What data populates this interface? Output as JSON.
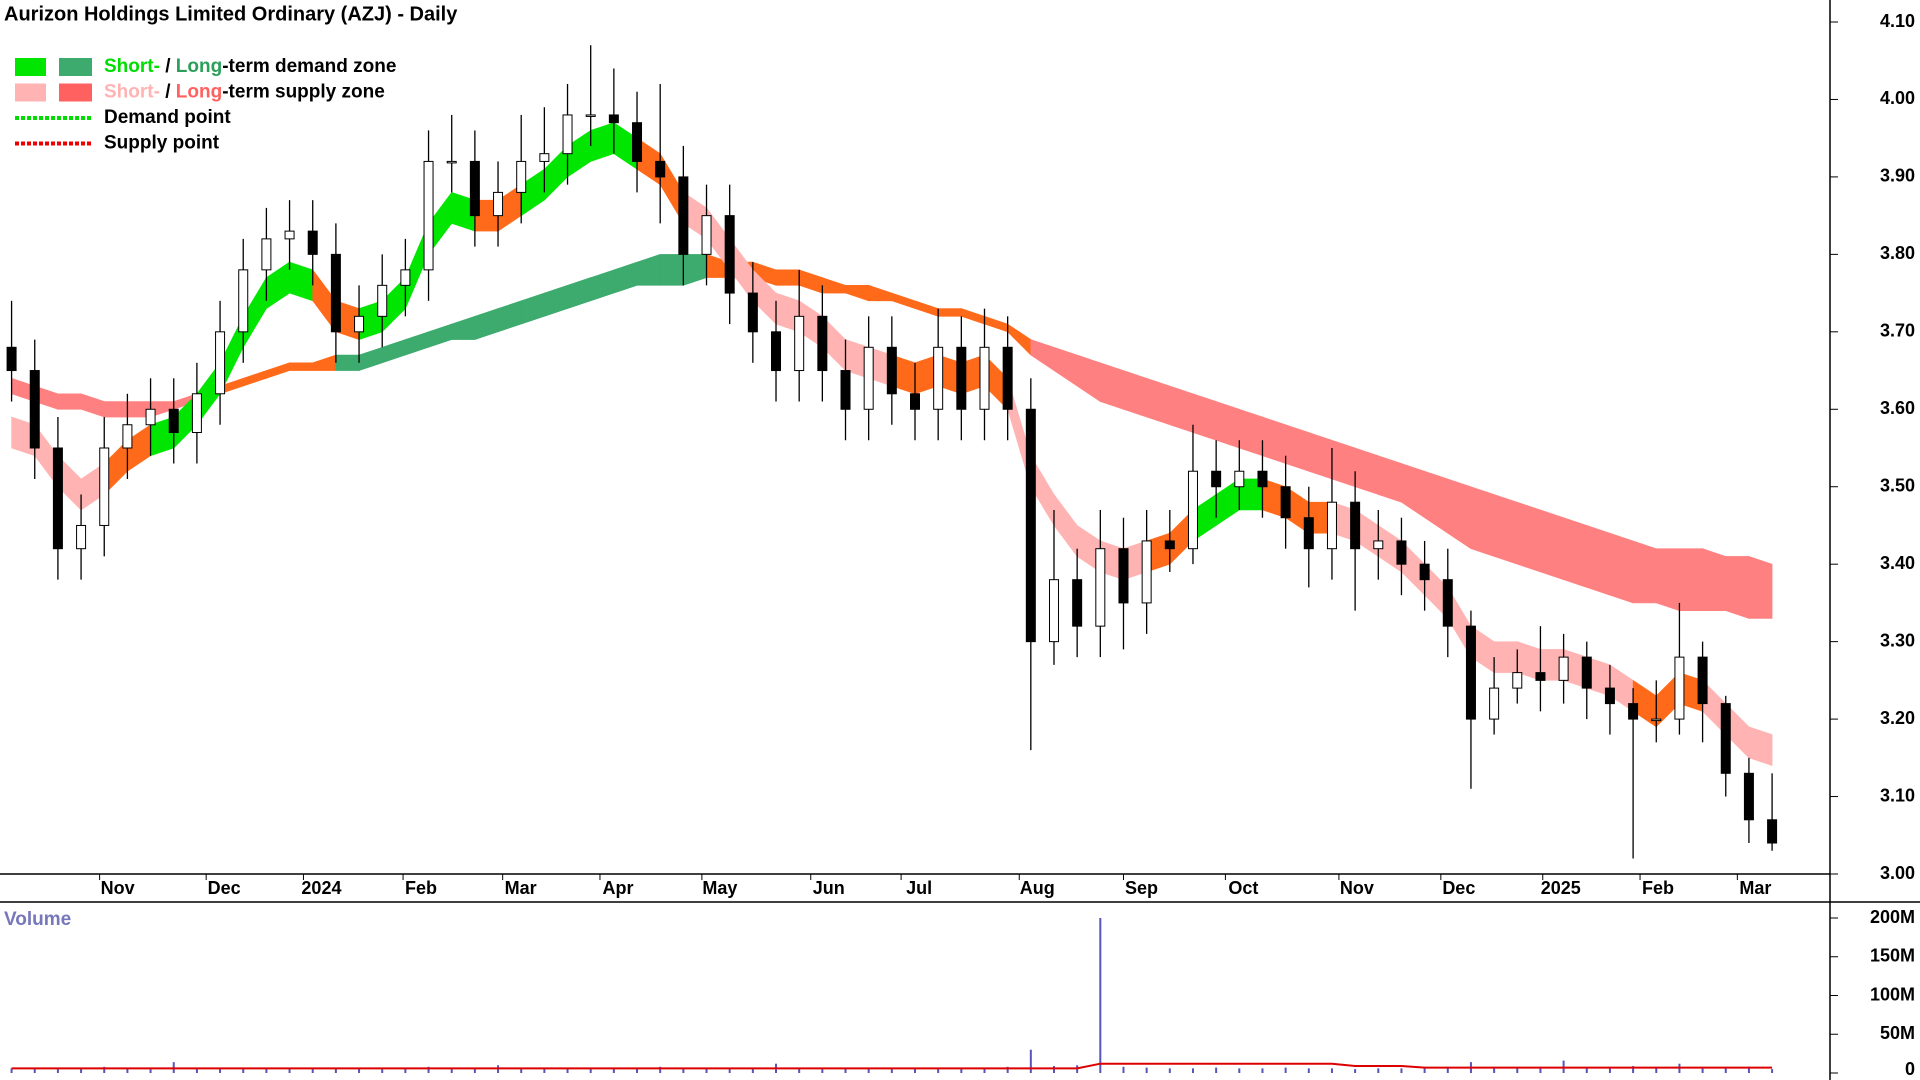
{
  "chart_data": {
    "type": "candlestick",
    "title": "Aurizon Holdings Limited Ordinary (AZJ) - Daily",
    "xlim": [
      -0.5,
      78.5
    ],
    "xticks": [
      {
        "value": 3.8,
        "label": "Nov"
      },
      {
        "value": 8.4,
        "label": "Dec"
      },
      {
        "value": 12.6,
        "label": "2024"
      },
      {
        "value": 16.9,
        "label": "Feb"
      },
      {
        "value": 21.2,
        "label": "Mar"
      },
      {
        "value": 25.4,
        "label": "Apr"
      },
      {
        "value": 29.8,
        "label": "May"
      },
      {
        "value": 34.5,
        "label": "Jun"
      },
      {
        "value": 38.4,
        "label": "Jul"
      },
      {
        "value": 43.5,
        "label": "Aug"
      },
      {
        "value": 48.0,
        "label": "Sep"
      },
      {
        "value": 52.4,
        "label": "Oct"
      },
      {
        "value": 57.3,
        "label": "Nov"
      },
      {
        "value": 61.7,
        "label": "Dec"
      },
      {
        "value": 66.1,
        "label": "2025"
      },
      {
        "value": 70.3,
        "label": "Feb"
      },
      {
        "value": 74.5,
        "label": "Mar"
      }
    ],
    "ylim": [
      3.0,
      4.1
    ],
    "yticks": [
      {
        "value": 3.0,
        "label": "3.00"
      },
      {
        "value": 3.1,
        "label": "3.10"
      },
      {
        "value": 3.2,
        "label": "3.20"
      },
      {
        "value": 3.3,
        "label": "3.30"
      },
      {
        "value": 3.4,
        "label": "3.40"
      },
      {
        "value": 3.5,
        "label": "3.50"
      },
      {
        "value": 3.6,
        "label": "3.60"
      },
      {
        "value": 3.7,
        "label": "3.70"
      },
      {
        "value": 3.8,
        "label": "3.80"
      },
      {
        "value": 3.9,
        "label": "3.90"
      },
      {
        "value": 4.0,
        "label": "4.00"
      },
      {
        "value": 4.1,
        "label": "4.10"
      }
    ],
    "up_color": "#ffffff",
    "down_color": "#000000",
    "open": [
      3.68,
      3.65,
      3.55,
      3.42,
      3.45,
      3.55,
      3.58,
      3.6,
      3.57,
      3.62,
      3.7,
      3.78,
      3.82,
      3.83,
      3.8,
      3.7,
      3.72,
      3.76,
      3.78,
      3.92,
      3.92,
      3.85,
      3.88,
      3.92,
      3.93,
      3.98,
      3.98,
      3.97,
      3.92,
      3.9,
      3.8,
      3.85,
      3.75,
      3.7,
      3.65,
      3.72,
      3.65,
      3.6,
      3.68,
      3.62,
      3.6,
      3.68,
      3.6,
      3.68,
      3.6,
      3.3,
      3.38,
      3.32,
      3.42,
      3.35,
      3.43,
      3.42,
      3.52,
      3.5,
      3.52,
      3.5,
      3.46,
      3.42,
      3.48,
      3.42,
      3.43,
      3.4,
      3.38,
      3.32,
      3.2,
      3.24,
      3.26,
      3.25,
      3.28,
      3.24,
      3.22,
      3.2,
      3.2,
      3.28,
      3.22,
      3.13,
      3.07
    ],
    "high": [
      3.74,
      3.69,
      3.59,
      3.49,
      3.59,
      3.62,
      3.64,
      3.64,
      3.66,
      3.74,
      3.82,
      3.86,
      3.87,
      3.87,
      3.84,
      3.76,
      3.8,
      3.82,
      3.96,
      3.98,
      3.96,
      3.92,
      3.98,
      3.99,
      4.02,
      4.07,
      4.04,
      4.01,
      4.02,
      3.94,
      3.89,
      3.89,
      3.79,
      3.74,
      3.78,
      3.76,
      3.69,
      3.72,
      3.72,
      3.66,
      3.73,
      3.72,
      3.73,
      3.72,
      3.64,
      3.47,
      3.42,
      3.47,
      3.46,
      3.47,
      3.47,
      3.58,
      3.56,
      3.56,
      3.56,
      3.54,
      3.5,
      3.55,
      3.52,
      3.47,
      3.46,
      3.43,
      3.42,
      3.34,
      3.28,
      3.29,
      3.32,
      3.31,
      3.3,
      3.27,
      3.24,
      3.25,
      3.35,
      3.3,
      3.23,
      3.15,
      3.13
    ],
    "low": [
      3.61,
      3.51,
      3.38,
      3.38,
      3.41,
      3.51,
      3.54,
      3.53,
      3.53,
      3.58,
      3.66,
      3.74,
      3.78,
      3.76,
      3.66,
      3.66,
      3.68,
      3.72,
      3.74,
      3.88,
      3.81,
      3.81,
      3.84,
      3.88,
      3.89,
      3.94,
      3.93,
      3.88,
      3.84,
      3.76,
      3.76,
      3.71,
      3.66,
      3.61,
      3.61,
      3.61,
      3.56,
      3.56,
      3.58,
      3.56,
      3.56,
      3.56,
      3.56,
      3.56,
      3.16,
      3.27,
      3.28,
      3.28,
      3.29,
      3.31,
      3.39,
      3.4,
      3.46,
      3.47,
      3.46,
      3.42,
      3.37,
      3.38,
      3.34,
      3.38,
      3.36,
      3.34,
      3.28,
      3.11,
      3.18,
      3.22,
      3.21,
      3.22,
      3.2,
      3.18,
      3.02,
      3.17,
      3.18,
      3.17,
      3.1,
      3.04,
      3.03
    ],
    "close": [
      3.65,
      3.55,
      3.42,
      3.45,
      3.55,
      3.58,
      3.6,
      3.57,
      3.62,
      3.7,
      3.78,
      3.82,
      3.83,
      3.8,
      3.7,
      3.72,
      3.76,
      3.78,
      3.92,
      3.92,
      3.85,
      3.88,
      3.92,
      3.93,
      3.98,
      3.98,
      3.97,
      3.92,
      3.9,
      3.8,
      3.85,
      3.75,
      3.7,
      3.65,
      3.72,
      3.65,
      3.6,
      3.68,
      3.62,
      3.6,
      3.68,
      3.6,
      3.68,
      3.6,
      3.3,
      3.38,
      3.32,
      3.42,
      3.35,
      3.43,
      3.42,
      3.52,
      3.5,
      3.52,
      3.5,
      3.46,
      3.42,
      3.48,
      3.42,
      3.43,
      3.4,
      3.38,
      3.32,
      3.2,
      3.24,
      3.26,
      3.25,
      3.28,
      3.24,
      3.22,
      3.2,
      3.2,
      3.28,
      3.22,
      3.13,
      3.07,
      3.04
    ],
    "zones": [
      {
        "upper": [
          3.64,
          3.63,
          3.62,
          3.62,
          3.61,
          3.61,
          3.61,
          3.61,
          3.62,
          3.63,
          3.64,
          3.65,
          3.66,
          3.66,
          3.67,
          3.67,
          3.68,
          3.69,
          3.7,
          3.71,
          3.72,
          3.73,
          3.74,
          3.75,
          3.76,
          3.77,
          3.78,
          3.79,
          3.8,
          3.8,
          3.8,
          3.79,
          3.79,
          3.78,
          3.78,
          3.77,
          3.76,
          3.76,
          3.75,
          3.74,
          3.73,
          3.73,
          3.72,
          3.71,
          3.69,
          3.68,
          3.67,
          3.66,
          3.65,
          3.64,
          3.63,
          3.62,
          3.61,
          3.6,
          3.59,
          3.58,
          3.57,
          3.56,
          3.55,
          3.54,
          3.53,
          3.52,
          3.51,
          3.5,
          3.49,
          3.48,
          3.47,
          3.46,
          3.45,
          3.44,
          3.43,
          3.42,
          3.42,
          3.42,
          3.41,
          3.41,
          3.4
        ],
        "lower": [
          3.62,
          3.61,
          3.6,
          3.6,
          3.59,
          3.59,
          3.59,
          3.6,
          3.61,
          3.62,
          3.63,
          3.64,
          3.65,
          3.65,
          3.65,
          3.65,
          3.66,
          3.67,
          3.68,
          3.69,
          3.69,
          3.7,
          3.71,
          3.72,
          3.73,
          3.74,
          3.75,
          3.76,
          3.76,
          3.76,
          3.77,
          3.77,
          3.77,
          3.76,
          3.76,
          3.75,
          3.75,
          3.74,
          3.74,
          3.73,
          3.72,
          3.72,
          3.71,
          3.7,
          3.67,
          3.65,
          3.63,
          3.61,
          3.6,
          3.59,
          3.58,
          3.57,
          3.56,
          3.55,
          3.54,
          3.53,
          3.52,
          3.51,
          3.5,
          3.49,
          3.48,
          3.46,
          3.44,
          3.42,
          3.41,
          3.4,
          3.39,
          3.38,
          3.37,
          3.36,
          3.35,
          3.35,
          3.34,
          3.34,
          3.34,
          3.33,
          3.33
        ],
        "colors": [
          "#ff8080",
          "#ff8080",
          "#ff8080",
          "#ff8080",
          "#ff8080",
          "#ff8080",
          "#ff8080",
          "#ff8080",
          "#ff6a1a",
          "#ff6a1a",
          "#ff6a1a",
          "#ff6a1a",
          "#ff6a1a",
          "#ff6a1a",
          "#3daa6e",
          "#3daa6e",
          "#3daa6e",
          "#3daa6e",
          "#3daa6e",
          "#3daa6e",
          "#3daa6e",
          "#3daa6e",
          "#3daa6e",
          "#3daa6e",
          "#3daa6e",
          "#3daa6e",
          "#3daa6e",
          "#3daa6e",
          "#3daa6e",
          "#3daa6e",
          "#ff6a1a",
          "#ff6a1a",
          "#ff6a1a",
          "#ff6a1a",
          "#ff6a1a",
          "#ff6a1a",
          "#ff6a1a",
          "#ff6a1a",
          "#ff6a1a",
          "#ff6a1a",
          "#ff6a1a",
          "#ff6a1a",
          "#ff6a1a",
          "#ff6a1a",
          "#ff8080",
          "#ff8080",
          "#ff8080",
          "#ff8080",
          "#ff8080",
          "#ff8080",
          "#ff8080",
          "#ff8080",
          "#ff8080",
          "#ff8080",
          "#ff8080",
          "#ff8080",
          "#ff8080",
          "#ff8080",
          "#ff8080",
          "#ff8080",
          "#ff8080",
          "#ff8080",
          "#ff8080",
          "#ff8080",
          "#ff8080",
          "#ff8080",
          "#ff8080",
          "#ff8080",
          "#ff8080",
          "#ff8080",
          "#ff8080",
          "#ff8080",
          "#ff8080",
          "#ff8080",
          "#ff8080",
          "#ff8080",
          "#ff8080"
        ]
      },
      {
        "upper": [
          3.59,
          3.58,
          3.54,
          3.51,
          3.53,
          3.56,
          3.58,
          3.59,
          3.62,
          3.66,
          3.72,
          3.77,
          3.79,
          3.78,
          3.74,
          3.73,
          3.74,
          3.77,
          3.84,
          3.88,
          3.87,
          3.87,
          3.89,
          3.91,
          3.94,
          3.96,
          3.97,
          3.95,
          3.93,
          3.88,
          3.86,
          3.82,
          3.78,
          3.75,
          3.74,
          3.72,
          3.69,
          3.68,
          3.67,
          3.66,
          3.67,
          3.66,
          3.67,
          3.64,
          3.54,
          3.49,
          3.45,
          3.43,
          3.42,
          3.43,
          3.44,
          3.47,
          3.49,
          3.51,
          3.51,
          3.5,
          3.48,
          3.48,
          3.47,
          3.45,
          3.43,
          3.4,
          3.37,
          3.32,
          3.3,
          3.3,
          3.29,
          3.29,
          3.28,
          3.27,
          3.25,
          3.23,
          3.26,
          3.25,
          3.22,
          3.19,
          3.18
        ],
        "lower": [
          3.55,
          3.54,
          3.5,
          3.47,
          3.49,
          3.52,
          3.54,
          3.55,
          3.58,
          3.62,
          3.68,
          3.73,
          3.75,
          3.74,
          3.7,
          3.69,
          3.7,
          3.73,
          3.8,
          3.84,
          3.83,
          3.83,
          3.85,
          3.87,
          3.9,
          3.92,
          3.93,
          3.91,
          3.89,
          3.84,
          3.82,
          3.78,
          3.74,
          3.71,
          3.7,
          3.68,
          3.65,
          3.64,
          3.63,
          3.62,
          3.63,
          3.62,
          3.63,
          3.6,
          3.5,
          3.45,
          3.41,
          3.39,
          3.38,
          3.39,
          3.4,
          3.43,
          3.45,
          3.47,
          3.47,
          3.46,
          3.44,
          3.44,
          3.43,
          3.41,
          3.39,
          3.36,
          3.33,
          3.28,
          3.26,
          3.26,
          3.25,
          3.25,
          3.24,
          3.23,
          3.21,
          3.19,
          3.22,
          3.21,
          3.18,
          3.15,
          3.14
        ],
        "colors": [
          "#ffb3b3",
          "#ffb3b3",
          "#ffb3b3",
          "#ffb3b3",
          "#ff6a1a",
          "#ff6a1a",
          "#00e600",
          "#00e600",
          "#00e600",
          "#00e600",
          "#00e600",
          "#00e600",
          "#00e600",
          "#ff6a1a",
          "#ff6a1a",
          "#00e600",
          "#00e600",
          "#00e600",
          "#00e600",
          "#00e600",
          "#ff6a1a",
          "#ff6a1a",
          "#00e600",
          "#00e600",
          "#00e600",
          "#00e600",
          "#00e600",
          "#ff6a1a",
          "#ff6a1a",
          "#ffb3b3",
          "#ffb3b3",
          "#ffb3b3",
          "#ffb3b3",
          "#ffb3b3",
          "#ffb3b3",
          "#ffb3b3",
          "#ffb3b3",
          "#ffb3b3",
          "#ff6a1a",
          "#ff6a1a",
          "#ff6a1a",
          "#ff6a1a",
          "#ff6a1a",
          "#ffb3b3",
          "#ffb3b3",
          "#ffb3b3",
          "#ffb3b3",
          "#ffb3b3",
          "#ffb3b3",
          "#ff6a1a",
          "#ff6a1a",
          "#00e600",
          "#00e600",
          "#00e600",
          "#ff6a1a",
          "#ff6a1a",
          "#ff6a1a",
          "#ffb3b3",
          "#ffb3b3",
          "#ffb3b3",
          "#ffb3b3",
          "#ffb3b3",
          "#ffb3b3",
          "#ffb3b3",
          "#ffb3b3",
          "#ffb3b3",
          "#ffb3b3",
          "#ffb3b3",
          "#ffb3b3",
          "#ffb3b3",
          "#ff6a1a",
          "#ff6a1a",
          "#ff6a1a",
          "#ffb3b3",
          "#ffb3b3",
          "#ffb3b3",
          "#ffb3b3"
        ]
      }
    ],
    "legend": [
      {
        "parts": [
          "Short-",
          " / ",
          "Long",
          "-term demand zone"
        ],
        "colors": [
          "#00dd00",
          "#000000",
          "#2ca05a",
          "#000000"
        ],
        "swatches": [
          "#00e600",
          "#3daa6e"
        ]
      },
      {
        "parts": [
          "Short-",
          " / ",
          "Long",
          "-term supply zone"
        ],
        "colors": [
          "#ffb3b3",
          "#000000",
          "#ff6060",
          "#000000"
        ],
        "swatches": [
          "#ffb3b3",
          "#ff6060"
        ]
      },
      {
        "parts": [
          "Demand point"
        ],
        "colors": [
          "#000000"
        ],
        "line_color": "#00dd00"
      },
      {
        "parts": [
          "Supply point"
        ],
        "colors": [
          "#000000"
        ],
        "line_color": "#ee0000"
      }
    ],
    "volume": {
      "label": "Volume",
      "color": "#5555bb",
      "average_color": "#dd0000",
      "ylim": [
        0,
        200
      ],
      "yticks": [
        0,
        {
          "value": 50,
          "label": "50M"
        },
        {
          "value": 100,
          "label": "100M"
        },
        {
          "value": 150,
          "label": "150M"
        },
        {
          "value": 200,
          "label": "200M"
        }
      ],
      "values": [
        6,
        7,
        5,
        6,
        8,
        6,
        5,
        14,
        6,
        6,
        7,
        5,
        6,
        6,
        7,
        6,
        5,
        6,
        8,
        6,
        7,
        10,
        6,
        6,
        7,
        6,
        5,
        6,
        8,
        6,
        7,
        6,
        6,
        12,
        6,
        5,
        6,
        7,
        6,
        6,
        5,
        6,
        7,
        8,
        30,
        9,
        10,
        200,
        8,
        7,
        6,
        6,
        7,
        6,
        6,
        7,
        6,
        6,
        5,
        6,
        6,
        7,
        8,
        14,
        7,
        6,
        6,
        16,
        7,
        6,
        9,
        8,
        12,
        7,
        6,
        8,
        5
      ],
      "average": [
        6,
        6,
        6,
        6,
        6,
        6,
        6,
        6,
        6,
        6,
        6,
        6,
        6,
        6,
        6,
        6,
        6,
        6,
        6,
        6,
        6,
        6,
        6,
        6,
        6,
        6,
        6,
        6,
        6,
        6,
        6,
        6,
        6,
        6,
        6,
        6,
        6,
        6,
        6,
        6,
        6,
        6,
        6,
        6,
        6,
        6,
        6,
        12,
        12,
        12,
        12,
        12,
        12,
        12,
        12,
        12,
        12,
        12,
        9,
        9,
        9,
        7,
        7,
        7,
        7,
        7,
        7,
        7,
        7,
        7,
        7,
        7,
        7,
        7,
        7,
        7,
        7
      ]
    }
  }
}
